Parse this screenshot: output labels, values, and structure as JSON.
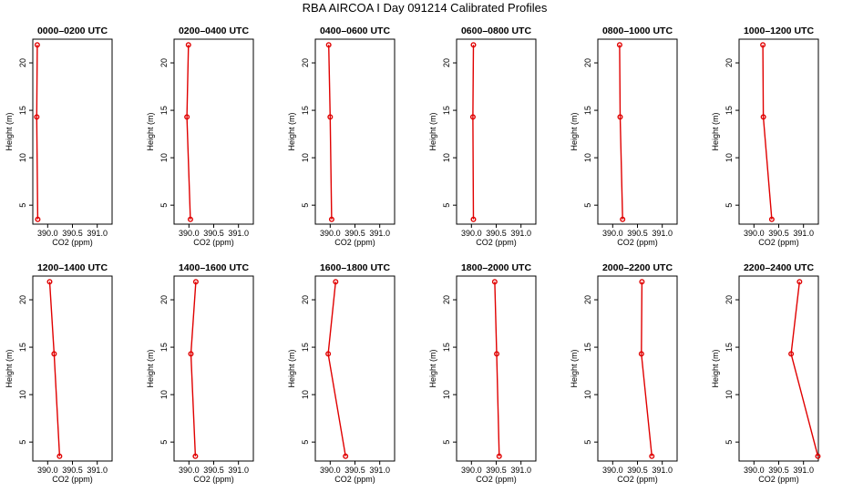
{
  "page_title": "RBA AIRCOA I  Day 091214  Calibrated Profiles",
  "colors": {
    "profile": "#e00000",
    "axis": "#000000",
    "background": "#ffffff"
  },
  "chart_data": [
    {
      "type": "line",
      "title": "0000–0200 UTC",
      "xlabel": "CO2 (ppm)",
      "ylabel": "Height (m)",
      "xlim": [
        389.7,
        391.3
      ],
      "ylim": [
        3,
        22.5
      ],
      "xticks": [
        "390.0",
        "390.5",
        "391.0"
      ],
      "yticks": [
        "5",
        "10",
        "15",
        "20"
      ],
      "x": [
        389.79,
        389.78,
        389.8
      ],
      "y": [
        21.9,
        14.3,
        3.5
      ]
    },
    {
      "type": "line",
      "title": "0200–0400 UTC",
      "xlabel": "CO2 (ppm)",
      "ylabel": "Height (m)",
      "xlim": [
        389.7,
        391.3
      ],
      "ylim": [
        3,
        22.5
      ],
      "xticks": [
        "390.0",
        "390.5",
        "391.0"
      ],
      "yticks": [
        "5",
        "10",
        "15",
        "20"
      ],
      "x": [
        389.99,
        389.96,
        390.03
      ],
      "y": [
        21.9,
        14.3,
        3.5
      ]
    },
    {
      "type": "line",
      "title": "0400–0600 UTC",
      "xlabel": "CO2 (ppm)",
      "ylabel": "Height (m)",
      "xlim": [
        389.7,
        391.3
      ],
      "ylim": [
        3,
        22.5
      ],
      "xticks": [
        "390.0",
        "390.5",
        "391.0"
      ],
      "yticks": [
        "5",
        "10",
        "15",
        "20"
      ],
      "x": [
        389.97,
        390.0,
        390.03
      ],
      "y": [
        21.9,
        14.3,
        3.5
      ]
    },
    {
      "type": "line",
      "title": "0600–0800 UTC",
      "xlabel": "CO2 (ppm)",
      "ylabel": "Height (m)",
      "xlim": [
        389.7,
        391.3
      ],
      "ylim": [
        3,
        22.5
      ],
      "xticks": [
        "390.0",
        "390.5",
        "391.0"
      ],
      "yticks": [
        "5",
        "10",
        "15",
        "20"
      ],
      "x": [
        390.04,
        390.03,
        390.04
      ],
      "y": [
        21.9,
        14.3,
        3.5
      ]
    },
    {
      "type": "line",
      "title": "0800–1000 UTC",
      "xlabel": "CO2 (ppm)",
      "ylabel": "Height (m)",
      "xlim": [
        389.7,
        391.3
      ],
      "ylim": [
        3,
        22.5
      ],
      "xticks": [
        "390.0",
        "390.5",
        "391.0"
      ],
      "yticks": [
        "5",
        "10",
        "15",
        "20"
      ],
      "x": [
        390.14,
        390.15,
        390.2
      ],
      "y": [
        21.9,
        14.3,
        3.5
      ]
    },
    {
      "type": "line",
      "title": "1000–1200 UTC",
      "xlabel": "CO2 (ppm)",
      "ylabel": "Height (m)",
      "xlim": [
        389.7,
        391.3
      ],
      "ylim": [
        3,
        22.5
      ],
      "xticks": [
        "390.0",
        "390.5",
        "391.0"
      ],
      "yticks": [
        "5",
        "10",
        "15",
        "20"
      ],
      "x": [
        390.18,
        390.19,
        390.36
      ],
      "y": [
        21.9,
        14.3,
        3.5
      ]
    },
    {
      "type": "line",
      "title": "1200–1400 UTC",
      "xlabel": "CO2 (ppm)",
      "ylabel": "Height (m)",
      "xlim": [
        389.7,
        391.3
      ],
      "ylim": [
        3,
        22.5
      ],
      "xticks": [
        "390.0",
        "390.5",
        "391.0"
      ],
      "yticks": [
        "5",
        "10",
        "15",
        "20"
      ],
      "x": [
        390.04,
        390.13,
        390.24
      ],
      "y": [
        21.9,
        14.3,
        3.5
      ]
    },
    {
      "type": "line",
      "title": "1400–1600 UTC",
      "xlabel": "CO2 (ppm)",
      "ylabel": "Height (m)",
      "xlim": [
        389.7,
        391.3
      ],
      "ylim": [
        3,
        22.5
      ],
      "xticks": [
        "390.0",
        "390.5",
        "391.0"
      ],
      "yticks": [
        "5",
        "10",
        "15",
        "20"
      ],
      "x": [
        390.14,
        390.04,
        390.13
      ],
      "y": [
        21.9,
        14.3,
        3.5
      ]
    },
    {
      "type": "line",
      "title": "1600–1800 UTC",
      "xlabel": "CO2 (ppm)",
      "ylabel": "Height (m)",
      "xlim": [
        389.7,
        391.3
      ],
      "ylim": [
        3,
        22.5
      ],
      "xticks": [
        "390.0",
        "390.5",
        "391.0"
      ],
      "yticks": [
        "5",
        "10",
        "15",
        "20"
      ],
      "x": [
        390.11,
        389.96,
        390.31
      ],
      "y": [
        21.9,
        14.3,
        3.5
      ]
    },
    {
      "type": "line",
      "title": "1800–2000 UTC",
      "xlabel": "CO2 (ppm)",
      "ylabel": "Height (m)",
      "xlim": [
        389.7,
        391.3
      ],
      "ylim": [
        3,
        22.5
      ],
      "xticks": [
        "390.0",
        "390.5",
        "391.0"
      ],
      "yticks": [
        "5",
        "10",
        "15",
        "20"
      ],
      "x": [
        390.47,
        390.51,
        390.56
      ],
      "y": [
        21.9,
        14.3,
        3.5
      ]
    },
    {
      "type": "line",
      "title": "2000–2200 UTC",
      "xlabel": "CO2 (ppm)",
      "ylabel": "Height (m)",
      "xlim": [
        389.7,
        391.3
      ],
      "ylim": [
        3,
        22.5
      ],
      "xticks": [
        "390.0",
        "390.5",
        "391.0"
      ],
      "yticks": [
        "5",
        "10",
        "15",
        "20"
      ],
      "x": [
        390.59,
        390.58,
        390.79
      ],
      "y": [
        21.9,
        14.3,
        3.5
      ]
    },
    {
      "type": "line",
      "title": "2200–2400 UTC",
      "xlabel": "CO2 (ppm)",
      "ylabel": "Height (m)",
      "xlim": [
        389.7,
        391.3
      ],
      "ylim": [
        3,
        22.5
      ],
      "xticks": [
        "390.0",
        "390.5",
        "391.0"
      ],
      "yticks": [
        "5",
        "10",
        "15",
        "20"
      ],
      "x": [
        390.92,
        390.75,
        391.29
      ],
      "y": [
        21.9,
        14.3,
        3.5
      ]
    }
  ]
}
